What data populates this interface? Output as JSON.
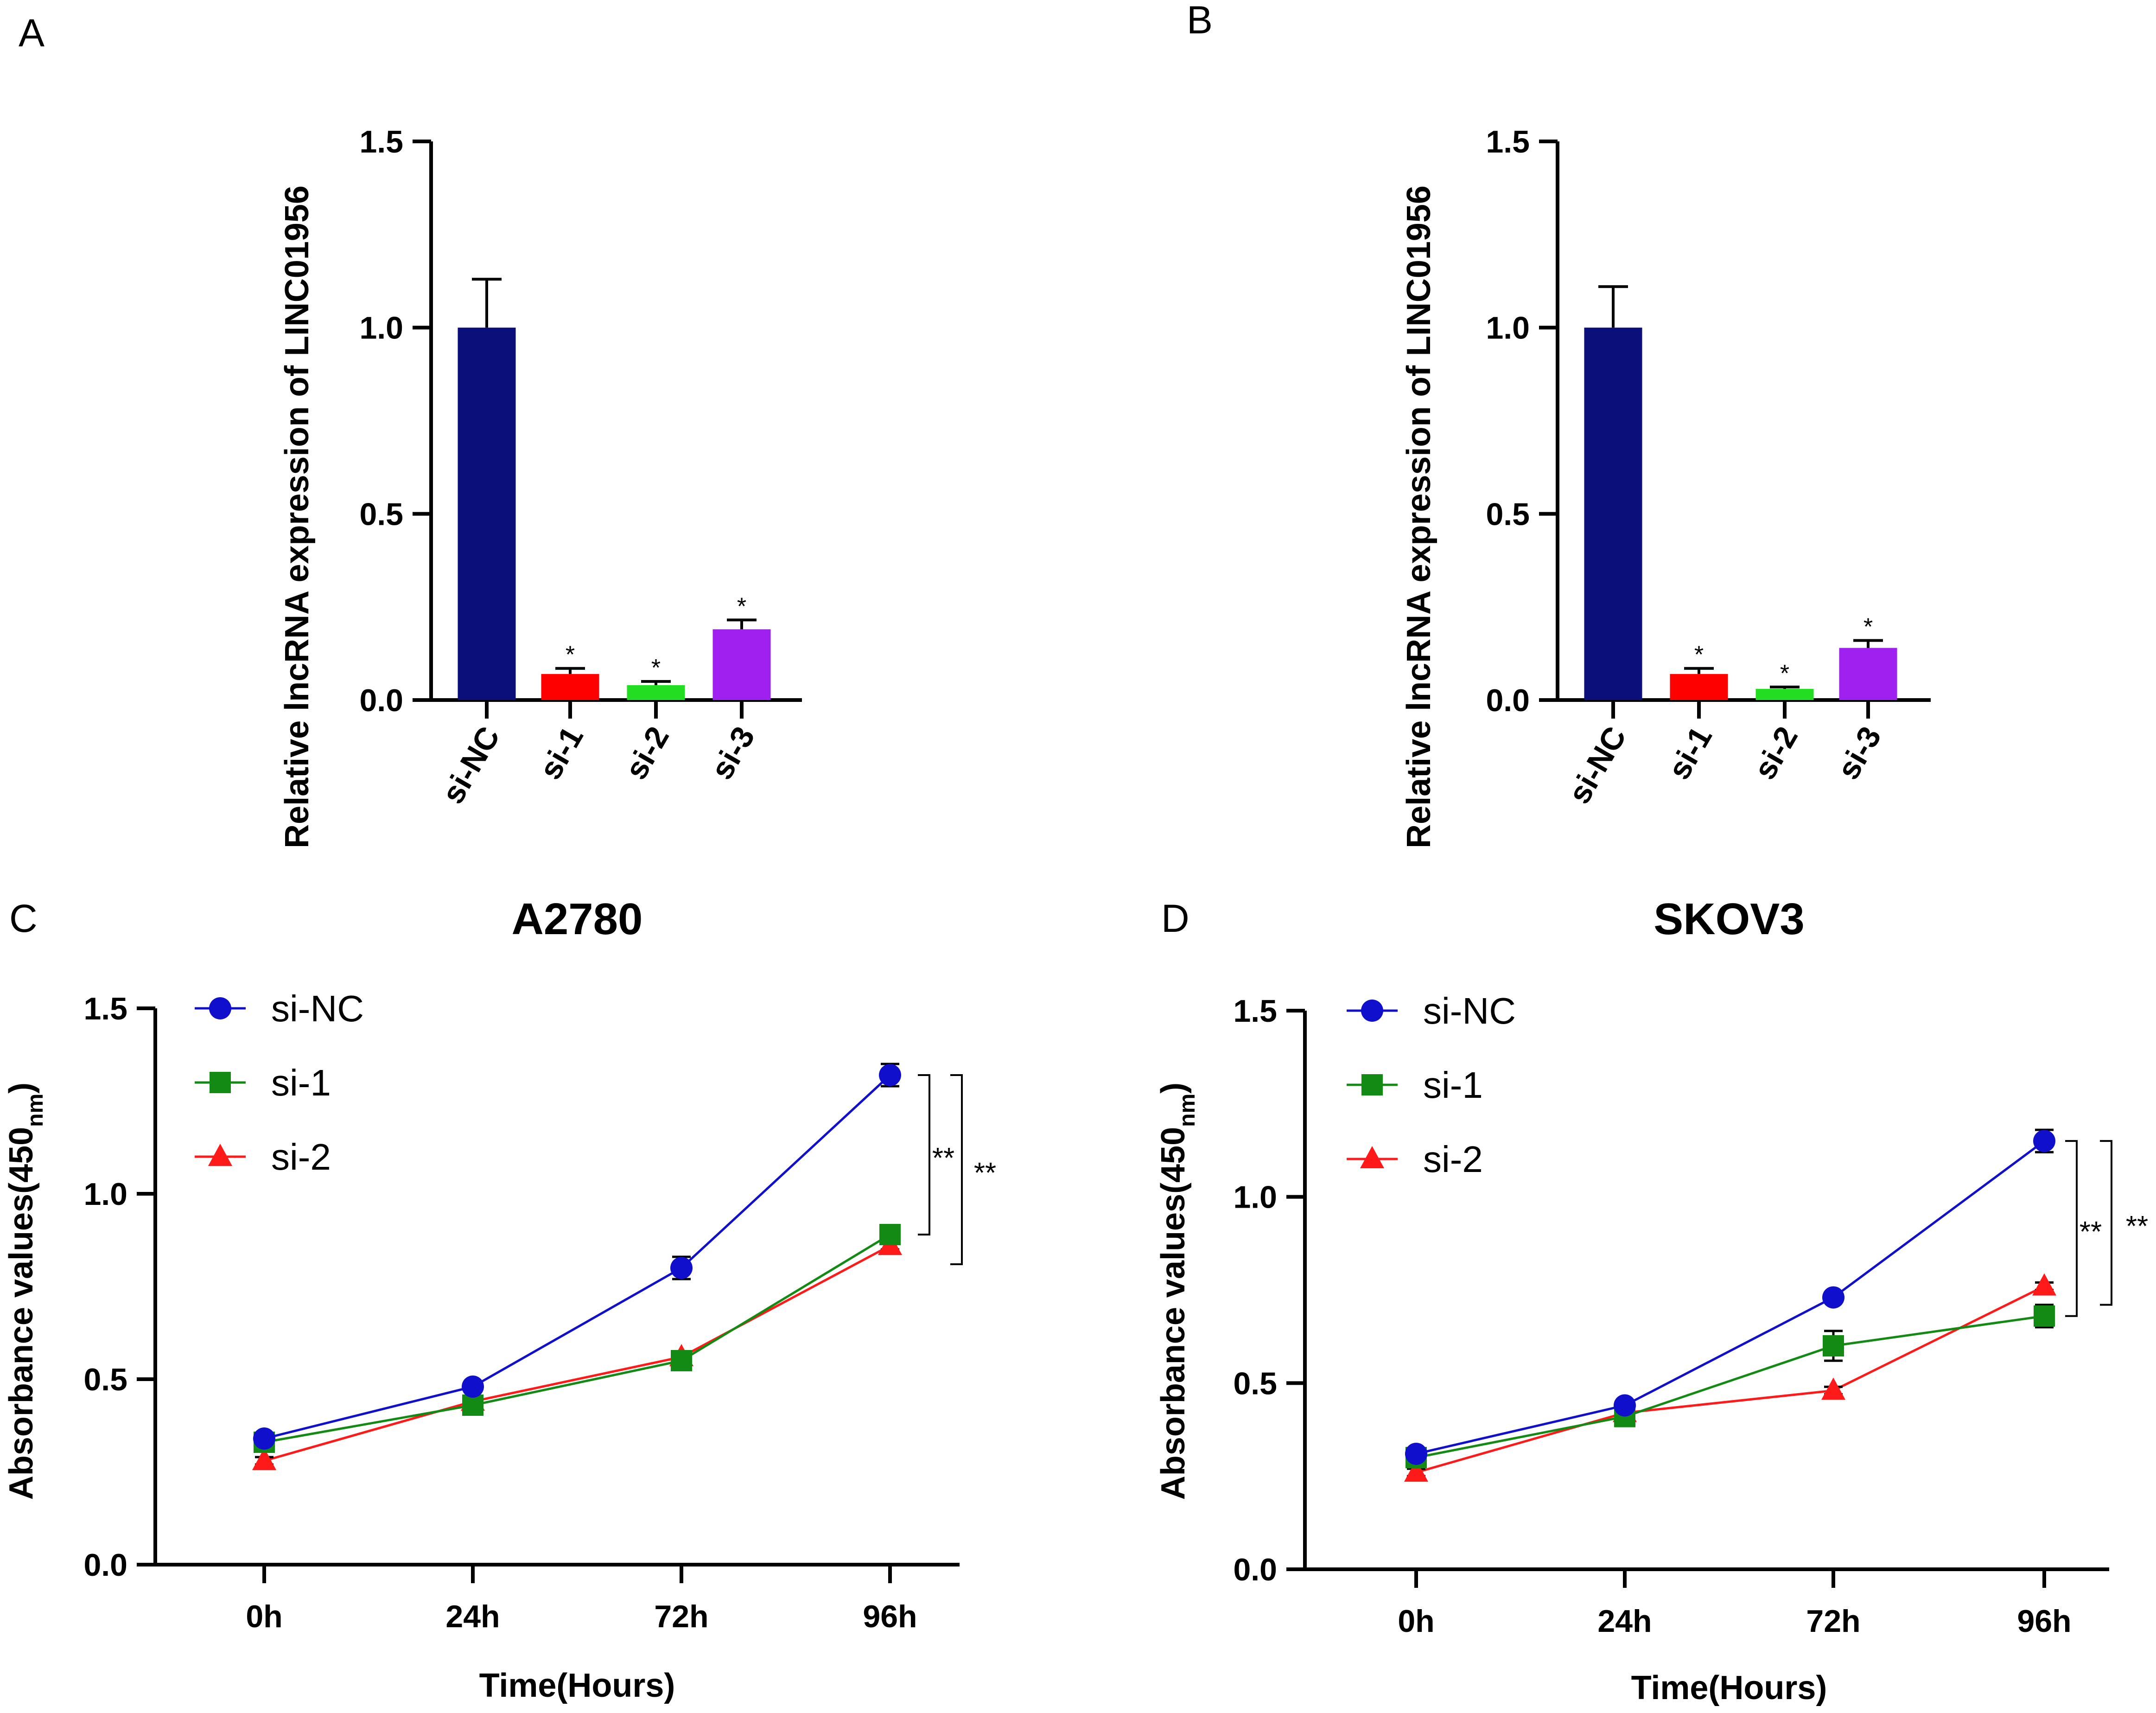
{
  "chart_data": [
    {
      "panel": "A",
      "type": "bar",
      "title": "",
      "ylabel": "Relative lncRNA expression of LINC01956",
      "xlabel": "",
      "ylim": [
        0,
        1.5
      ],
      "yticks": [
        "0.0",
        "0.5",
        "1.0",
        "1.5"
      ],
      "categories": [
        "si-NC",
        "si-1",
        "si-2",
        "si-3"
      ],
      "values": [
        1.0,
        0.07,
        0.04,
        0.19
      ],
      "errors": [
        0.13,
        0.015,
        0.01,
        0.025
      ],
      "significance": [
        "",
        "*",
        "*",
        "*"
      ],
      "colors": [
        "#0b0f7a",
        "#ff0000",
        "#22dd22",
        "#a020f0"
      ]
    },
    {
      "panel": "B",
      "type": "bar",
      "title": "",
      "ylabel": "Relative lncRNA expression of LINC01956",
      "xlabel": "",
      "ylim": [
        0,
        1.5
      ],
      "yticks": [
        "0.0",
        "0.5",
        "1.0",
        "1.5"
      ],
      "categories": [
        "si-NC",
        "si-1",
        "si-2",
        "si-3"
      ],
      "values": [
        1.0,
        0.07,
        0.03,
        0.14
      ],
      "errors": [
        0.11,
        0.015,
        0.005,
        0.02
      ],
      "significance": [
        "",
        "*",
        "*",
        "*"
      ],
      "colors": [
        "#0b0f7a",
        "#ff0000",
        "#22dd22",
        "#a020f0"
      ]
    },
    {
      "panel": "C",
      "type": "line",
      "title": "A2780",
      "ylabel_main": "Absorbance values(450",
      "ylabel_sub": "nm",
      "ylabel_close": ")",
      "xlabel": "Time(Hours)",
      "ylim": [
        0,
        1.5
      ],
      "yticks": [
        "0.0",
        "0.5",
        "1.0",
        "1.5"
      ],
      "categories": [
        "0h",
        "24h",
        "72h",
        "96h"
      ],
      "series": [
        {
          "name": "si-NC",
          "color": "#1010cc",
          "marker": "circle",
          "values": [
            0.34,
            0.48,
            0.8,
            1.32
          ],
          "errors": [
            0.01,
            0.01,
            0.03,
            0.03
          ]
        },
        {
          "name": "si-1",
          "color": "#138a13",
          "marker": "square",
          "values": [
            0.33,
            0.43,
            0.55,
            0.89
          ],
          "errors": [
            0.01,
            0.02,
            0.01,
            0.02
          ]
        },
        {
          "name": "si-2",
          "color": "#ff1a1a",
          "marker": "triangle",
          "values": [
            0.28,
            0.44,
            0.56,
            0.86
          ],
          "errors": [
            0.01,
            0.01,
            0.01,
            0.01
          ]
        }
      ],
      "significance": [
        {
          "label": "**",
          "from_series": "si-NC",
          "to_series": "si-1"
        },
        {
          "label": "**",
          "from_series": "si-NC",
          "to_series": "si-2"
        }
      ]
    },
    {
      "panel": "D",
      "type": "line",
      "title": "SKOV3",
      "ylabel_main": "Absorbance values(450",
      "ylabel_sub": "nm",
      "ylabel_close": ")",
      "xlabel": "Time(Hours)",
      "ylim": [
        0,
        1.5
      ],
      "yticks": [
        "0.0",
        "0.5",
        "1.0",
        "1.5"
      ],
      "categories": [
        "0h",
        "24h",
        "72h",
        "96h"
      ],
      "series": [
        {
          "name": "si-NC",
          "color": "#1010cc",
          "marker": "circle",
          "values": [
            0.31,
            0.44,
            0.73,
            1.15
          ],
          "errors": [
            0.01,
            0.01,
            0.01,
            0.03
          ]
        },
        {
          "name": "si-1",
          "color": "#138a13",
          "marker": "square",
          "values": [
            0.3,
            0.41,
            0.6,
            0.68
          ],
          "errors": [
            0.01,
            0.02,
            0.04,
            0.03
          ]
        },
        {
          "name": "si-2",
          "color": "#ff1a1a",
          "marker": "triangle",
          "values": [
            0.26,
            0.42,
            0.48,
            0.76
          ],
          "errors": [
            0.01,
            0.01,
            0.01,
            0.01
          ]
        }
      ],
      "significance": [
        {
          "label": "**",
          "from_series": "si-NC",
          "to_series": "si-1"
        },
        {
          "label": "**",
          "from_series": "si-NC",
          "to_series": "si-2"
        }
      ]
    }
  ]
}
